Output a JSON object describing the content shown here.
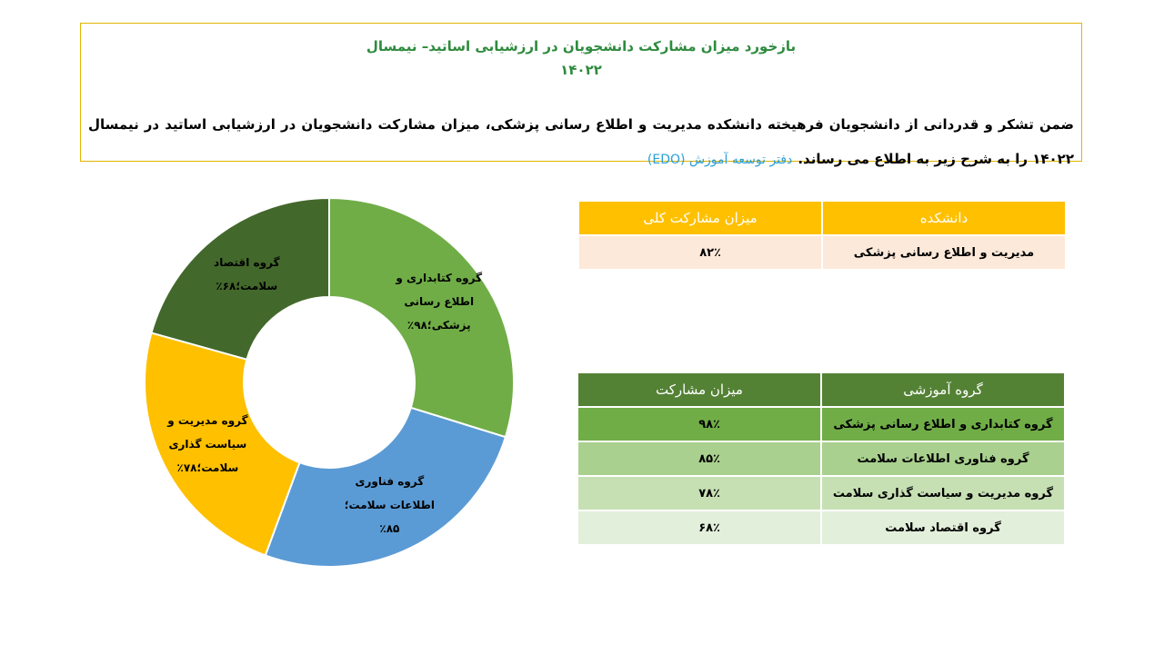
{
  "header": {
    "title": "بازخورد میزان مشارکت دانشجویان در ارزشیابی اساتید– نیمسال ۱۴۰۲۲",
    "paragraph": "ضمن تشکر و قدردانی از دانشجویان فرهیخته دانشکده مدیریت و اطلاع رسانی پزشکی، میزان مشارکت دانشجویان در ارزشیابی اساتید در نیمسال ۱۴۰۲۲ را به شرح زیر به اطلاع می رساند.",
    "source": "دفتر توسعه آموزش (EDO)"
  },
  "chart_data": {
    "type": "donut",
    "categories": [
      "گروه کتابداری و اطلاع رسانی پزشکی",
      "گروه فناوری اطلاعات سلامت",
      "گروه مدیریت و سیاست گذاری سلامت",
      "گروه اقتصاد سلامت"
    ],
    "values": [
      98,
      85,
      78,
      68
    ],
    "value_labels": [
      "۹۸٪",
      "۸۵٪",
      "۷۸٪",
      "۶۸٪"
    ],
    "label_separator": "؛",
    "colors": [
      "#70ad47",
      "#5b9bd5",
      "#ffc000",
      "#43682b"
    ]
  },
  "tables": [
    {
      "header": [
        "دانشکده",
        "میزان مشارکت کلی"
      ],
      "rows": [
        [
          "مدیریت و اطلاع رسانی پزشکی",
          "۸۲٪"
        ]
      ]
    },
    {
      "header": [
        "گروه آموزشی",
        "میزان مشارکت"
      ],
      "rows": [
        [
          "گروه کتابداری و اطلاع رسانی پزشکی",
          "۹۸٪"
        ],
        [
          "گروه فناوری اطلاعات سلامت",
          "۸۵٪"
        ],
        [
          "گروه مدیریت و سیاست گذاری سلامت",
          "۷۸٪"
        ],
        [
          "گروه اقتصاد سلامت",
          "۶۸٪"
        ]
      ]
    }
  ]
}
